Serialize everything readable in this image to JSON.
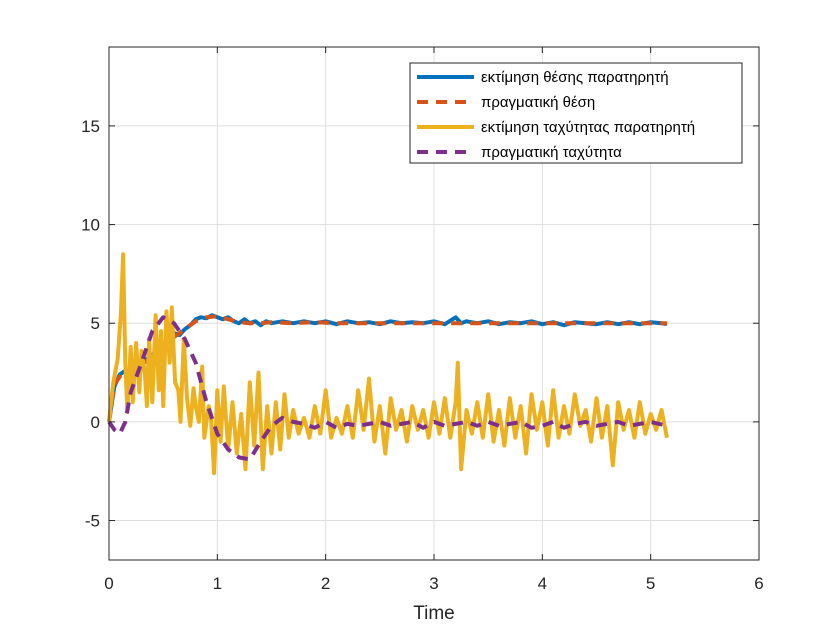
{
  "chart_data": {
    "type": "line",
    "title": "",
    "xlabel": "Time",
    "ylabel": "",
    "xlim": [
      0,
      6
    ],
    "ylim": [
      -7,
      19
    ],
    "x_ticks": [
      "0",
      "1",
      "2",
      "3",
      "4",
      "5",
      "6"
    ],
    "y_ticks": [
      "-5",
      "0",
      "5",
      "10",
      "15"
    ],
    "grid": true,
    "legend_position": "top-right",
    "series": [
      {
        "name": "εκτίμηση θέσης παρατηρητή",
        "color": "#0072BD",
        "style": "solid",
        "points": [
          [
            0,
            0
          ],
          [
            0.05,
            1.8
          ],
          [
            0.1,
            2.4
          ],
          [
            0.15,
            2.6
          ],
          [
            0.2,
            2.5
          ],
          [
            0.25,
            2.8
          ],
          [
            0.3,
            3.0
          ],
          [
            0.35,
            3.2
          ],
          [
            0.4,
            3.4
          ],
          [
            0.45,
            3.6
          ],
          [
            0.5,
            3.9
          ],
          [
            0.55,
            4.2
          ],
          [
            0.6,
            4.5
          ],
          [
            0.65,
            4.4
          ],
          [
            0.7,
            4.7
          ],
          [
            0.75,
            4.9
          ],
          [
            0.8,
            5.2
          ],
          [
            0.85,
            5.3
          ],
          [
            0.9,
            5.25
          ],
          [
            0.95,
            5.4
          ],
          [
            1.0,
            5.3
          ],
          [
            1.05,
            5.2
          ],
          [
            1.1,
            5.3
          ],
          [
            1.15,
            5.1
          ],
          [
            1.2,
            5.0
          ],
          [
            1.25,
            5.2
          ],
          [
            1.3,
            5.0
          ],
          [
            1.35,
            5.1
          ],
          [
            1.4,
            4.9
          ],
          [
            1.45,
            5.1
          ],
          [
            1.5,
            5.0
          ],
          [
            1.6,
            5.1
          ],
          [
            1.7,
            5.0
          ],
          [
            1.8,
            5.1
          ],
          [
            1.9,
            5.0
          ],
          [
            2.0,
            5.1
          ],
          [
            2.1,
            4.95
          ],
          [
            2.2,
            5.1
          ],
          [
            2.3,
            5.0
          ],
          [
            2.4,
            5.05
          ],
          [
            2.5,
            4.95
          ],
          [
            2.6,
            5.1
          ],
          [
            2.7,
            5.0
          ],
          [
            2.8,
            5.05
          ],
          [
            2.9,
            5.0
          ],
          [
            3.0,
            5.1
          ],
          [
            3.1,
            4.95
          ],
          [
            3.2,
            5.3
          ],
          [
            3.25,
            5.0
          ],
          [
            3.3,
            5.1
          ],
          [
            3.4,
            5.0
          ],
          [
            3.5,
            5.1
          ],
          [
            3.6,
            4.95
          ],
          [
            3.7,
            5.05
          ],
          [
            3.8,
            5.0
          ],
          [
            3.9,
            5.1
          ],
          [
            4.0,
            4.95
          ],
          [
            4.1,
            5.05
          ],
          [
            4.2,
            4.9
          ],
          [
            4.3,
            5.05
          ],
          [
            4.4,
            5.0
          ],
          [
            4.5,
            4.95
          ],
          [
            4.6,
            5.05
          ],
          [
            4.7,
            4.95
          ],
          [
            4.8,
            5.05
          ],
          [
            4.9,
            4.95
          ],
          [
            5.0,
            5.05
          ],
          [
            5.1,
            5.0
          ],
          [
            5.15,
            4.95
          ]
        ]
      },
      {
        "name": "πραγματική θέση",
        "color": "#D95319",
        "style": "dashed",
        "points": [
          [
            0,
            0
          ],
          [
            0.05,
            1.9
          ],
          [
            0.1,
            2.3
          ],
          [
            0.15,
            2.5
          ],
          [
            0.2,
            2.6
          ],
          [
            0.3,
            2.9
          ],
          [
            0.4,
            3.3
          ],
          [
            0.5,
            3.8
          ],
          [
            0.6,
            4.3
          ],
          [
            0.7,
            4.7
          ],
          [
            0.8,
            5.1
          ],
          [
            0.9,
            5.3
          ],
          [
            1.0,
            5.35
          ],
          [
            1.1,
            5.2
          ],
          [
            1.2,
            5.05
          ],
          [
            1.3,
            5.0
          ],
          [
            1.4,
            5.0
          ],
          [
            1.5,
            5.05
          ],
          [
            1.7,
            5.0
          ],
          [
            1.9,
            5.05
          ],
          [
            2.1,
            5.0
          ],
          [
            2.3,
            5.0
          ],
          [
            2.5,
            5.0
          ],
          [
            2.7,
            5.0
          ],
          [
            2.9,
            5.0
          ],
          [
            3.1,
            5.0
          ],
          [
            3.3,
            5.0
          ],
          [
            3.5,
            5.0
          ],
          [
            3.7,
            5.0
          ],
          [
            3.9,
            5.0
          ],
          [
            4.1,
            5.0
          ],
          [
            4.3,
            5.0
          ],
          [
            4.5,
            5.0
          ],
          [
            4.7,
            5.0
          ],
          [
            4.9,
            5.0
          ],
          [
            5.15,
            5.0
          ]
        ]
      },
      {
        "name": "εκτίμηση ταχύτητας παρατηρητή",
        "color": "#EDB120",
        "style": "solid",
        "points": [
          [
            0,
            0
          ],
          [
            0.04,
            2.0
          ],
          [
            0.08,
            3.2
          ],
          [
            0.11,
            5.5
          ],
          [
            0.13,
            8.5
          ],
          [
            0.15,
            3.0
          ],
          [
            0.17,
            0.5
          ],
          [
            0.2,
            3.8
          ],
          [
            0.22,
            1.0
          ],
          [
            0.25,
            4.0
          ],
          [
            0.28,
            1.5
          ],
          [
            0.3,
            3.6
          ],
          [
            0.33,
            2.5
          ],
          [
            0.35,
            0.8
          ],
          [
            0.37,
            4.2
          ],
          [
            0.4,
            1.0
          ],
          [
            0.43,
            5.4
          ],
          [
            0.46,
            1.6
          ],
          [
            0.48,
            4.6
          ],
          [
            0.5,
            0.8
          ],
          [
            0.53,
            5.6
          ],
          [
            0.56,
            3.0
          ],
          [
            0.58,
            5.8
          ],
          [
            0.61,
            2.0
          ],
          [
            0.64,
            1.6
          ],
          [
            0.66,
            0.0
          ],
          [
            0.69,
            4.2
          ],
          [
            0.72,
            1.2
          ],
          [
            0.75,
            -0.2
          ],
          [
            0.78,
            1.7
          ],
          [
            0.8,
            0.8
          ],
          [
            0.83,
            0.0
          ],
          [
            0.86,
            2.8
          ],
          [
            0.88,
            -0.8
          ],
          [
            0.92,
            0.8
          ],
          [
            0.94,
            0.4
          ],
          [
            0.97,
            -2.6
          ],
          [
            1.0,
            1.6
          ],
          [
            1.03,
            -1.0
          ],
          [
            1.06,
            1.8
          ],
          [
            1.1,
            -1.4
          ],
          [
            1.14,
            1.0
          ],
          [
            1.18,
            -1.6
          ],
          [
            1.22,
            0.4
          ],
          [
            1.26,
            -2.4
          ],
          [
            1.3,
            2.0
          ],
          [
            1.34,
            -1.2
          ],
          [
            1.38,
            2.5
          ],
          [
            1.42,
            -2.4
          ],
          [
            1.46,
            0.8
          ],
          [
            1.5,
            -1.6
          ],
          [
            1.54,
            1.0
          ],
          [
            1.58,
            -1.4
          ],
          [
            1.62,
            1.4
          ],
          [
            1.66,
            -0.8
          ],
          [
            1.7,
            0.6
          ],
          [
            1.75,
            -0.6
          ],
          [
            1.8,
            0.2
          ],
          [
            1.85,
            -0.8
          ],
          [
            1.9,
            0.8
          ],
          [
            1.95,
            -0.6
          ],
          [
            2.0,
            1.6
          ],
          [
            2.05,
            -0.8
          ],
          [
            2.1,
            0.2
          ],
          [
            2.15,
            -0.6
          ],
          [
            2.2,
            0.8
          ],
          [
            2.25,
            -0.8
          ],
          [
            2.3,
            1.6
          ],
          [
            2.35,
            -0.4
          ],
          [
            2.4,
            2.2
          ],
          [
            2.45,
            -1.0
          ],
          [
            2.5,
            0.8
          ],
          [
            2.55,
            -1.6
          ],
          [
            2.6,
            1.2
          ],
          [
            2.65,
            -0.4
          ],
          [
            2.7,
            0.6
          ],
          [
            2.75,
            -1.0
          ],
          [
            2.8,
            0.8
          ],
          [
            2.85,
            -0.4
          ],
          [
            2.9,
            0.6
          ],
          [
            2.95,
            -0.8
          ],
          [
            3.0,
            1.0
          ],
          [
            3.05,
            -0.6
          ],
          [
            3.1,
            1.2
          ],
          [
            3.15,
            -0.8
          ],
          [
            3.2,
            1.0
          ],
          [
            3.22,
            3.0
          ],
          [
            3.25,
            -2.4
          ],
          [
            3.3,
            0.6
          ],
          [
            3.35,
            -0.6
          ],
          [
            3.4,
            1.0
          ],
          [
            3.45,
            -0.8
          ],
          [
            3.5,
            1.4
          ],
          [
            3.55,
            -1.0
          ],
          [
            3.6,
            0.6
          ],
          [
            3.65,
            -1.2
          ],
          [
            3.7,
            1.2
          ],
          [
            3.75,
            -0.8
          ],
          [
            3.8,
            0.8
          ],
          [
            3.85,
            -1.6
          ],
          [
            3.9,
            1.4
          ],
          [
            3.95,
            -0.4
          ],
          [
            4.0,
            1.0
          ],
          [
            4.05,
            -1.2
          ],
          [
            4.1,
            1.6
          ],
          [
            4.15,
            -0.8
          ],
          [
            4.2,
            0.8
          ],
          [
            4.25,
            -0.6
          ],
          [
            4.3,
            1.4
          ],
          [
            4.35,
            -0.2
          ],
          [
            4.4,
            0.6
          ],
          [
            4.45,
            -1.0
          ],
          [
            4.5,
            1.2
          ],
          [
            4.55,
            -0.8
          ],
          [
            4.6,
            0.8
          ],
          [
            4.65,
            -2.2
          ],
          [
            4.7,
            1.0
          ],
          [
            4.75,
            -0.4
          ],
          [
            4.8,
            0.6
          ],
          [
            4.85,
            -0.8
          ],
          [
            4.9,
            1.0
          ],
          [
            4.95,
            -0.6
          ],
          [
            5.0,
            0.4
          ],
          [
            5.05,
            -0.4
          ],
          [
            5.1,
            0.6
          ],
          [
            5.15,
            -0.8
          ]
        ]
      },
      {
        "name": "πραγματική ταχύτητα",
        "color": "#7E2F8E",
        "style": "dashed",
        "points": [
          [
            0,
            0
          ],
          [
            0.05,
            -0.4
          ],
          [
            0.1,
            -0.6
          ],
          [
            0.15,
            0.0
          ],
          [
            0.2,
            1.5
          ],
          [
            0.3,
            3.0
          ],
          [
            0.4,
            4.6
          ],
          [
            0.5,
            5.3
          ],
          [
            0.6,
            5.0
          ],
          [
            0.7,
            4.2
          ],
          [
            0.8,
            3.0
          ],
          [
            0.9,
            1.0
          ],
          [
            1.0,
            -0.6
          ],
          [
            1.1,
            -1.4
          ],
          [
            1.2,
            -1.8
          ],
          [
            1.3,
            -1.9
          ],
          [
            1.4,
            -1.0
          ],
          [
            1.5,
            -0.2
          ],
          [
            1.6,
            0.2
          ],
          [
            1.7,
            0.0
          ],
          [
            1.8,
            -0.1
          ],
          [
            1.9,
            -0.3
          ],
          [
            2.0,
            0.0
          ],
          [
            2.1,
            -0.3
          ],
          [
            2.2,
            -0.1
          ],
          [
            2.3,
            -0.2
          ],
          [
            2.4,
            -0.1
          ],
          [
            2.5,
            0.0
          ],
          [
            2.6,
            -0.2
          ],
          [
            2.7,
            -0.1
          ],
          [
            2.8,
            0.0
          ],
          [
            2.9,
            -0.3
          ],
          [
            3.0,
            0.0
          ],
          [
            3.1,
            -0.2
          ],
          [
            3.2,
            -0.1
          ],
          [
            3.3,
            0.0
          ],
          [
            3.4,
            -0.2
          ],
          [
            3.5,
            0.0
          ],
          [
            3.6,
            -0.2
          ],
          [
            3.7,
            -0.1
          ],
          [
            3.8,
            0.0
          ],
          [
            3.9,
            -0.3
          ],
          [
            4.0,
            -0.2
          ],
          [
            4.1,
            0.0
          ],
          [
            4.2,
            -0.3
          ],
          [
            4.3,
            -0.1
          ],
          [
            4.4,
            0.0
          ],
          [
            4.5,
            -0.2
          ],
          [
            4.6,
            -0.1
          ],
          [
            4.7,
            0.0
          ],
          [
            4.8,
            -0.2
          ],
          [
            4.9,
            -0.1
          ],
          [
            5.0,
            0.0
          ],
          [
            5.15,
            -0.2
          ]
        ]
      }
    ]
  }
}
